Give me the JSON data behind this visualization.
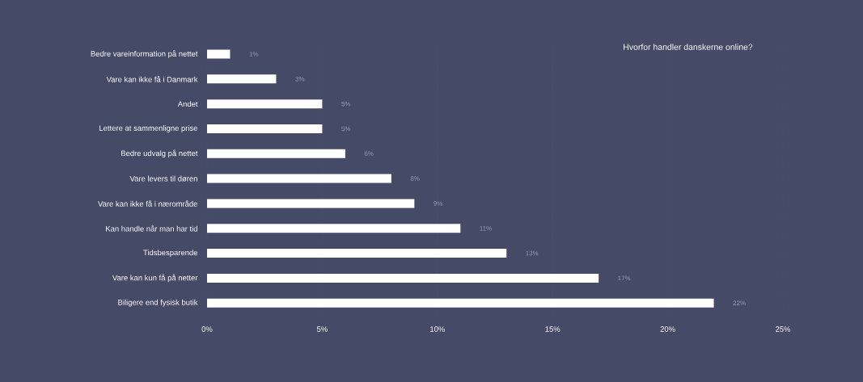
{
  "chart_data": {
    "type": "bar",
    "orientation": "horizontal",
    "title": "Hvorfor handler danskerne online?",
    "categories": [
      "Bedre vareinformation på nettet",
      "Vare kan ikke få i Danmark",
      "Andet",
      "Lettere at sammenligne prise",
      "Bedre udvalg på nettet",
      "Vare levers til døren",
      "Vare kan ikke få i nærområde",
      "Kan handle når man har tid",
      "Tidsbesparende",
      "Vare kan kun få på netter",
      "Biligere end fysisk butik"
    ],
    "values": [
      1,
      3,
      5,
      5,
      6,
      8,
      9,
      11,
      13,
      17,
      22
    ],
    "value_labels": [
      "1%",
      "3%",
      "5%",
      "5%",
      "6%",
      "8%",
      "9%",
      "11%",
      "13%",
      "17%",
      "22%"
    ],
    "color": "#ffffff",
    "xlim": [
      0,
      25
    ],
    "xticks": [
      {
        "value": 0,
        "label": "0%"
      },
      {
        "value": 5,
        "label": "5%"
      },
      {
        "value": 10,
        "label": "10%"
      },
      {
        "value": 15,
        "label": "15%"
      },
      {
        "value": 20,
        "label": "20%"
      },
      {
        "value": 25,
        "label": "25%"
      }
    ],
    "grid": "x"
  }
}
